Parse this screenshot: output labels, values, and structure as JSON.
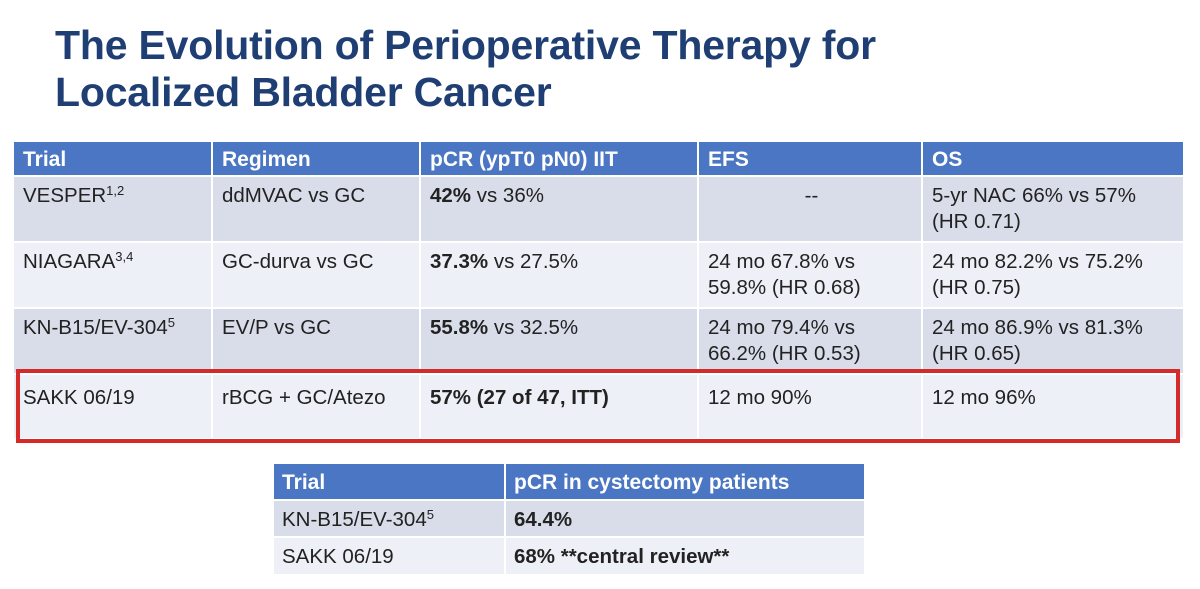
{
  "title": {
    "line1": "The Evolution of Perioperative Therapy for",
    "line2": "Localized Bladder Cancer"
  },
  "colors": {
    "title": "#1f3e74",
    "header_bg": "#4a76c3",
    "row_dark": "#d8dde9",
    "row_light": "#edf0f6",
    "highlight_border": "#d32a2a"
  },
  "main_table": {
    "headers": [
      "Trial",
      "Regimen",
      "pCR (ypT0 pN0) IIT",
      "EFS",
      "OS"
    ],
    "rows": [
      {
        "trial": "VESPER",
        "trial_sup": "1,2",
        "regimen": "ddMVAC vs GC",
        "pcr_bold": "42%",
        "pcr_rest": " vs 36%",
        "efs": "--",
        "os_line1": "5-yr NAC 66% vs 57%",
        "os_line2": "(HR 0.71)"
      },
      {
        "trial": "NIAGARA",
        "trial_sup": "3,4",
        "regimen": "GC-durva vs GC",
        "pcr_bold": "37.3%",
        "pcr_rest": " vs 27.5%",
        "efs_line1": "24 mo 67.8% vs",
        "efs_line2": "59.8% (HR 0.68)",
        "os_line1": "24 mo 82.2% vs 75.2%",
        "os_line2": "(HR 0.75)"
      },
      {
        "trial": "KN-B15/EV-304",
        "trial_sup": "5",
        "regimen": "EV/P vs GC",
        "pcr_bold": "55.8%",
        "pcr_rest": " vs 32.5%",
        "efs_line1": "24 mo 79.4% vs",
        "efs_line2": "66.2% (HR 0.53)",
        "os_line1": "24 mo 86.9% vs 81.3%",
        "os_line2": "(HR 0.65)"
      },
      {
        "trial": "SAKK 06/19",
        "regimen": "rBCG + GC/Atezo",
        "pcr_bold": "57% (27 of 47, ITT)",
        "efs": "12 mo 90%",
        "os": "12 mo 96%"
      }
    ]
  },
  "sub_table": {
    "headers": [
      "Trial",
      "pCR in cystectomy patients"
    ],
    "rows": [
      {
        "trial": "KN-B15/EV-304",
        "trial_sup": "5",
        "pcr": "64.4%"
      },
      {
        "trial": "SAKK 06/19",
        "pcr": "68% **central review**"
      }
    ]
  }
}
